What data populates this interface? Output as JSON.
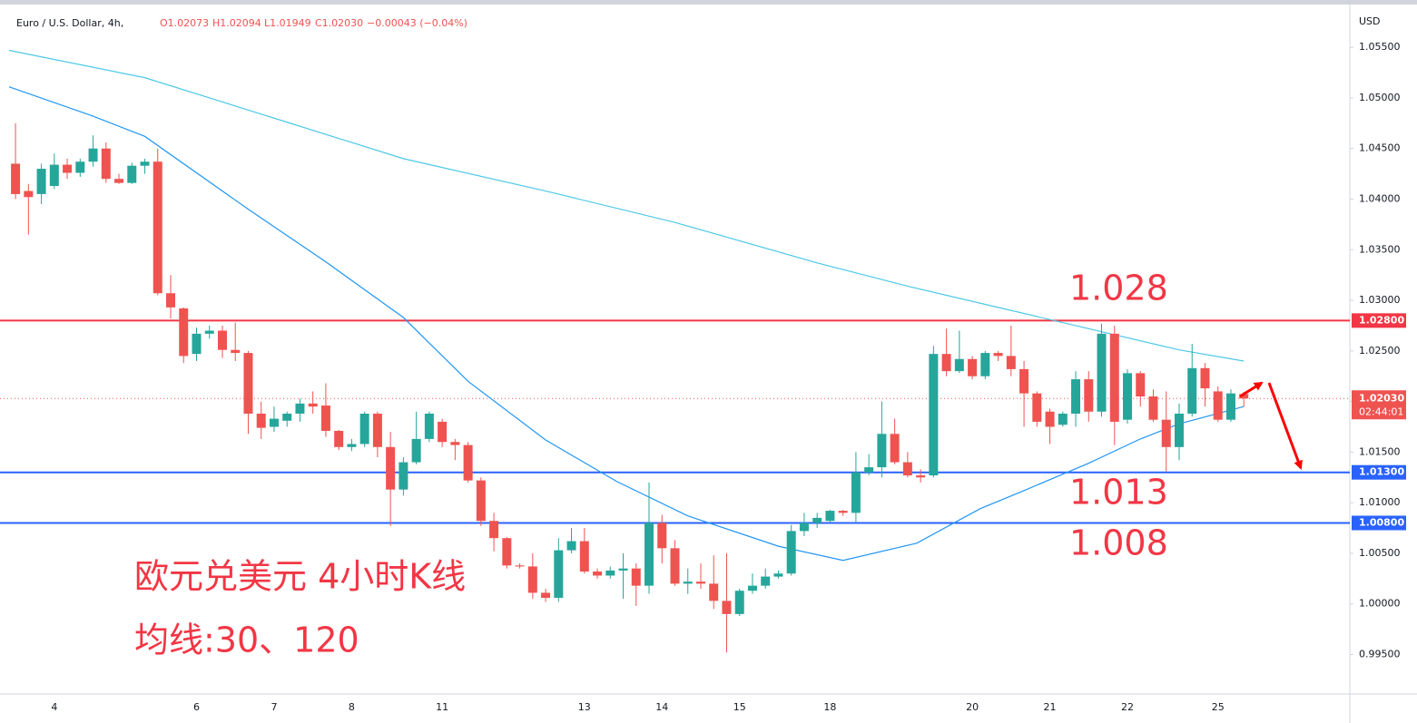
{
  "chart_data": {
    "type": "candlestick",
    "title": "Euro / U.S. Dollar, 4h,",
    "ohlc_text": [
      "O1.02073",
      "H1.02094",
      "L1.01949",
      "C1.02030",
      "−0.00043 (−0.04%)"
    ],
    "currency": "USD",
    "up_color": "#26a69a",
    "down_color": "#ef5350",
    "categories": [
      null,
      null,
      null,
      "4",
      null,
      null,
      null,
      null,
      null,
      null,
      null,
      null,
      null,
      null,
      "6",
      null,
      null,
      null,
      null,
      null,
      "7",
      null,
      null,
      null,
      null,
      null,
      "8",
      null,
      null,
      null,
      null,
      null,
      null,
      "11",
      null,
      null,
      null,
      null,
      null,
      null,
      null,
      null,
      null,
      null,
      "13",
      null,
      null,
      null,
      null,
      null,
      "14",
      null,
      null,
      null,
      null,
      null,
      "15",
      null,
      null,
      null,
      null,
      null,
      null,
      "18",
      null,
      null,
      null,
      null,
      null,
      null,
      null,
      null,
      null,
      null,
      "20",
      null,
      null,
      null,
      null,
      null,
      "21",
      null,
      null,
      null,
      null,
      null,
      "22",
      null,
      null,
      null,
      null,
      null,
      null,
      "25",
      null,
      null
    ],
    "open": [
      1.0435,
      1.0408,
      1.0405,
      1.0413,
      1.0434,
      1.0426,
      1.0437,
      1.045,
      1.042,
      1.0416,
      1.0433,
      1.0437,
      1.0307,
      1.0292,
      1.0247,
      1.0267,
      1.027,
      1.0251,
      1.0248,
      1.0188,
      1.0175,
      1.0181,
      1.0188,
      1.0198,
      1.0196,
      1.0171,
      1.0155,
      1.0158,
      1.0188,
      1.0155,
      1.0113,
      1.014,
      1.0163,
      1.018,
      1.016,
      1.0157,
      1.0122,
      1.0082,
      1.0065,
      1.0038,
      1.0037,
      1.0011,
      1.0006,
      1.0053,
      1.0062,
      1.0032,
      1.0028,
      1.0033,
      1.0035,
      1.0018,
      1.008,
      1.0055,
      1.002,
      1.0022,
      1.002,
      1.0003,
      0.999,
      1.0013,
      1.0018,
      1.0027,
      1.003,
      1.0072,
      1.008,
      1.0082,
      1.0092,
      1.009,
      1.013,
      1.0135,
      1.0168,
      1.014,
      1.0127,
      1.0127,
      1.0247,
      1.023,
      1.0242,
      1.0225,
      1.0248,
      1.0245,
      1.0232,
      1.0208,
      1.019,
      1.0177,
      1.0188,
      1.0222,
      1.019,
      1.0267,
      1.0182,
      1.0228,
      1.0205,
      1.0182,
      1.0155,
      1.0188,
      1.0233,
      1.021,
      1.0182,
      1.02073
    ],
    "high": [
      1.0475,
      1.0415,
      1.0435,
      1.0445,
      1.044,
      1.044,
      1.0463,
      1.0456,
      1.0425,
      1.0436,
      1.044,
      1.045,
      1.0325,
      1.0293,
      1.0273,
      1.0275,
      1.0275,
      1.0278,
      1.025,
      1.02,
      1.0195,
      1.019,
      1.0203,
      1.021,
      1.0218,
      1.0172,
      1.0163,
      1.019,
      1.019,
      1.017,
      1.0145,
      1.019,
      1.019,
      1.0183,
      1.0163,
      1.016,
      1.0125,
      1.009,
      1.0066,
      1.004,
      1.005,
      1.0015,
      1.0065,
      1.0075,
      1.0075,
      1.0035,
      1.0037,
      1.005,
      1.004,
      1.012,
      1.0088,
      1.0063,
      1.0035,
      1.004,
      1.0048,
      1.005,
      1.0015,
      1.003,
      1.0035,
      1.0033,
      1.0078,
      1.009,
      1.009,
      1.0093,
      1.0093,
      1.015,
      1.0148,
      1.02,
      1.0183,
      1.015,
      1.0133,
      1.0255,
      1.0272,
      1.027,
      1.0245,
      1.025,
      1.025,
      1.0275,
      1.024,
      1.021,
      1.0193,
      1.019,
      1.023,
      1.023,
      1.0277,
      1.0275,
      1.0232,
      1.023,
      1.0212,
      1.021,
      1.0198,
      1.0257,
      1.0238,
      1.0215,
      1.0212,
      1.02094
    ],
    "low": [
      1.04,
      1.0365,
      1.0395,
      1.041,
      1.042,
      1.0422,
      1.0432,
      1.0416,
      1.0415,
      1.0415,
      1.0425,
      1.0305,
      1.0282,
      1.0238,
      1.024,
      1.0262,
      1.0243,
      1.024,
      1.0168,
      1.0163,
      1.017,
      1.0175,
      1.018,
      1.0188,
      1.0165,
      1.0152,
      1.0151,
      1.0155,
      1.0145,
      1.0077,
      1.0107,
      1.0138,
      1.016,
      1.0155,
      1.0142,
      1.012,
      1.0077,
      1.0052,
      1.0035,
      1.0035,
      1.0005,
      1.0002,
      1.0002,
      1.005,
      1.003,
      1.0025,
      1.0025,
      1.0005,
      0.9998,
      1.001,
      1.004,
      1.0018,
      1.001,
      1.0015,
      0.9995,
      0.9952,
      0.9988,
      1.001,
      1.0015,
      1.0025,
      1.0028,
      1.0067,
      1.0075,
      1.008,
      1.0087,
      1.008,
      1.0127,
      1.0125,
      1.0138,
      1.0125,
      1.012,
      1.0125,
      1.0225,
      1.0228,
      1.0222,
      1.0222,
      1.024,
      1.0225,
      1.0175,
      1.0175,
      1.0158,
      1.0175,
      1.0175,
      1.018,
      1.0185,
      1.0157,
      1.0178,
      1.0195,
      1.018,
      1.0131,
      1.0142,
      1.0185,
      1.0195,
      1.018,
      1.018,
      1.01949
    ],
    "close": [
      1.0405,
      1.0402,
      1.043,
      1.0434,
      1.0426,
      1.0437,
      1.045,
      1.042,
      1.0416,
      1.0433,
      1.0437,
      1.0307,
      1.0293,
      1.0245,
      1.0267,
      1.027,
      1.0251,
      1.0248,
      1.0188,
      1.0174,
      1.0183,
      1.0188,
      1.0198,
      1.0195,
      1.0171,
      1.0155,
      1.0158,
      1.0188,
      1.0155,
      1.0113,
      1.014,
      1.0163,
      1.0188,
      1.016,
      1.0157,
      1.0122,
      1.0082,
      1.0065,
      1.0038,
      1.0037,
      1.0011,
      1.0006,
      1.0053,
      1.0062,
      1.0032,
      1.0028,
      1.0033,
      1.0035,
      1.0018,
      1.008,
      1.0055,
      1.002,
      1.0022,
      1.002,
      1.0003,
      0.999,
      1.0013,
      1.0018,
      1.0027,
      1.003,
      1.0072,
      1.008,
      1.0085,
      1.0092,
      1.009,
      1.013,
      1.0135,
      1.0168,
      1.014,
      1.0127,
      1.0125,
      1.0247,
      1.023,
      1.0242,
      1.0225,
      1.0248,
      1.0245,
      1.0232,
      1.0208,
      1.018,
      1.0175,
      1.0188,
      1.0222,
      1.019,
      1.0267,
      1.018,
      1.0228,
      1.0205,
      1.0182,
      1.0155,
      1.0188,
      1.0233,
      1.0213,
      1.0182,
      1.0208,
      1.0203
    ],
    "overlays": [
      {
        "color": "#4dc9e6",
        "x": [
          -0.5,
          10,
          20,
          30,
          41,
          51,
          62,
          69,
          76,
          83,
          90,
          95
        ],
        "values": [
          1.0547,
          1.052,
          1.048,
          1.044,
          1.0408,
          1.0377,
          1.0337,
          1.0314,
          1.0293,
          1.0272,
          1.0251,
          1.024
        ]
      },
      {
        "color": "#2196f3",
        "x": [
          -0.5,
          6,
          10,
          18,
          24,
          30,
          35,
          41,
          46.5,
          52,
          59,
          64,
          69.7,
          74.6,
          78,
          83,
          87,
          90,
          95
        ],
        "values": [
          1.0511,
          1.0482,
          1.0462,
          1.039,
          1.0338,
          1.0283,
          1.022,
          1.0162,
          1.0121,
          1.0087,
          1.0057,
          1.0043,
          1.006,
          1.0094,
          1.0112,
          1.0139,
          1.0163,
          1.0178,
          1.0195
        ]
      }
    ],
    "levels": [
      {
        "value": 1.028,
        "color": "#f23645",
        "label": "1.02800",
        "note": "1.028"
      },
      {
        "value": 1.013,
        "color": "#2962ff",
        "label": "1.01300",
        "note": "1.013"
      },
      {
        "value": 1.008,
        "color": "#2962ff",
        "label": "1.00800",
        "note": "1.008"
      }
    ],
    "last_price": {
      "value": 1.0203,
      "label": "1.02030",
      "countdown": "02:44:01",
      "color": "#ef5350"
    },
    "annotations": [
      "欧元兑美元 4小时K线",
      "均线:30、120"
    ],
    "xlim": [
      -1.2,
      103.2
    ],
    "ylim": [
      0.9911,
      1.0586
    ],
    "yticks": [
      {
        "value": 0.995,
        "label": "0.99500"
      },
      {
        "value": 1.0,
        "label": "1.00000"
      },
      {
        "value": 1.005,
        "label": "1.00500"
      },
      {
        "value": 1.01,
        "label": "1.01000"
      },
      {
        "value": 1.015,
        "label": "1.01500"
      },
      {
        "value": 1.02,
        "label": "1.02000"
      },
      {
        "value": 1.025,
        "label": "1.02500"
      },
      {
        "value": 1.03,
        "label": "1.03000"
      },
      {
        "value": 1.035,
        "label": "1.03500"
      },
      {
        "value": 1.04,
        "label": "1.04000"
      },
      {
        "value": 1.045,
        "label": "1.04500"
      },
      {
        "value": 1.05,
        "label": "1.05000"
      },
      {
        "value": 1.055,
        "label": "1.05500"
      }
    ],
    "grid": false
  }
}
